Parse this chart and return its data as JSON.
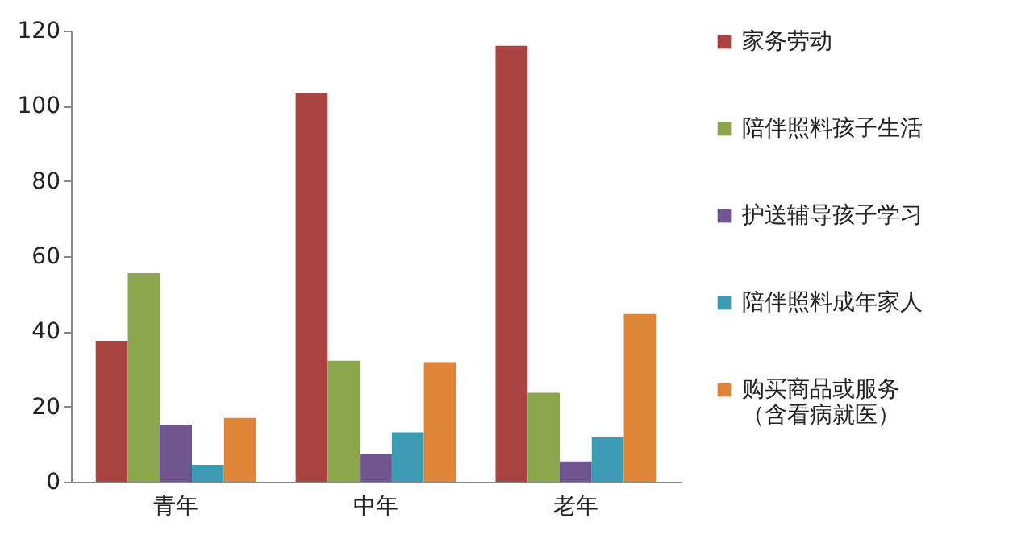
{
  "chart_data": {
    "type": "bar",
    "categories": [
      "青年",
      "中年",
      "老年"
    ],
    "series": [
      {
        "name": "家务劳动",
        "color": "#a94442",
        "values": [
          37.5,
          103.4,
          116
        ]
      },
      {
        "name": "陪伴照料孩子生活",
        "color": "#8ba64c",
        "values": [
          55.5,
          32.2,
          23.7
        ]
      },
      {
        "name": "护送辅导孩子学习",
        "color": "#71558f",
        "values": [
          15.2,
          7.4,
          5.4
        ]
      },
      {
        "name": "陪伴照料成年家人",
        "color": "#3b9bb3",
        "values": [
          4.5,
          13.2,
          11.8
        ]
      },
      {
        "name": "购买商品或服务（含看病就医）",
        "color": "#df8537",
        "values": [
          17,
          31.8,
          44.6
        ]
      }
    ],
    "ylim": [
      0,
      120
    ],
    "yticks": [
      0,
      20,
      40,
      60,
      80,
      100,
      120
    ],
    "grid": false,
    "legend": "right"
  }
}
